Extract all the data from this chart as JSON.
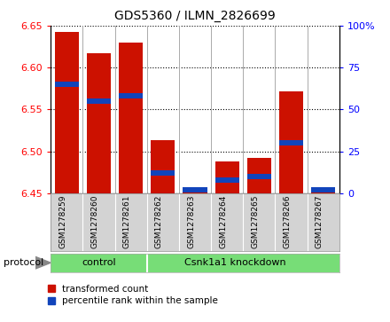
{
  "title": "GDS5360 / ILMN_2826699",
  "samples": [
    "GSM1278259",
    "GSM1278260",
    "GSM1278261",
    "GSM1278262",
    "GSM1278263",
    "GSM1278264",
    "GSM1278265",
    "GSM1278266",
    "GSM1278267"
  ],
  "red_values": [
    6.643,
    6.617,
    6.63,
    6.513,
    6.457,
    6.488,
    6.492,
    6.572,
    6.457
  ],
  "blue_values_pct": [
    65,
    55,
    58,
    12,
    2,
    8,
    10,
    30,
    2
  ],
  "ylim_left": [
    6.45,
    6.65
  ],
  "ylim_right": [
    0,
    100
  ],
  "yticks_left": [
    6.45,
    6.5,
    6.55,
    6.6,
    6.65
  ],
  "yticks_right": [
    0,
    25,
    50,
    75,
    100
  ],
  "ytick_labels_right": [
    "0",
    "25",
    "50",
    "75",
    "100%"
  ],
  "red_color": "#CC1100",
  "blue_color": "#1144BB",
  "bar_bottom": 6.45,
  "blue_bar_height": 0.006,
  "control_label": "control",
  "knockdown_label": "Csnk1a1 knockdown",
  "protocol_label": "protocol",
  "legend_red": "transformed count",
  "legend_blue": "percentile rank within the sample",
  "tick_area_bg": "#d3d3d3",
  "green_color": "#77dd77",
  "bar_width": 0.75,
  "n_control": 3
}
